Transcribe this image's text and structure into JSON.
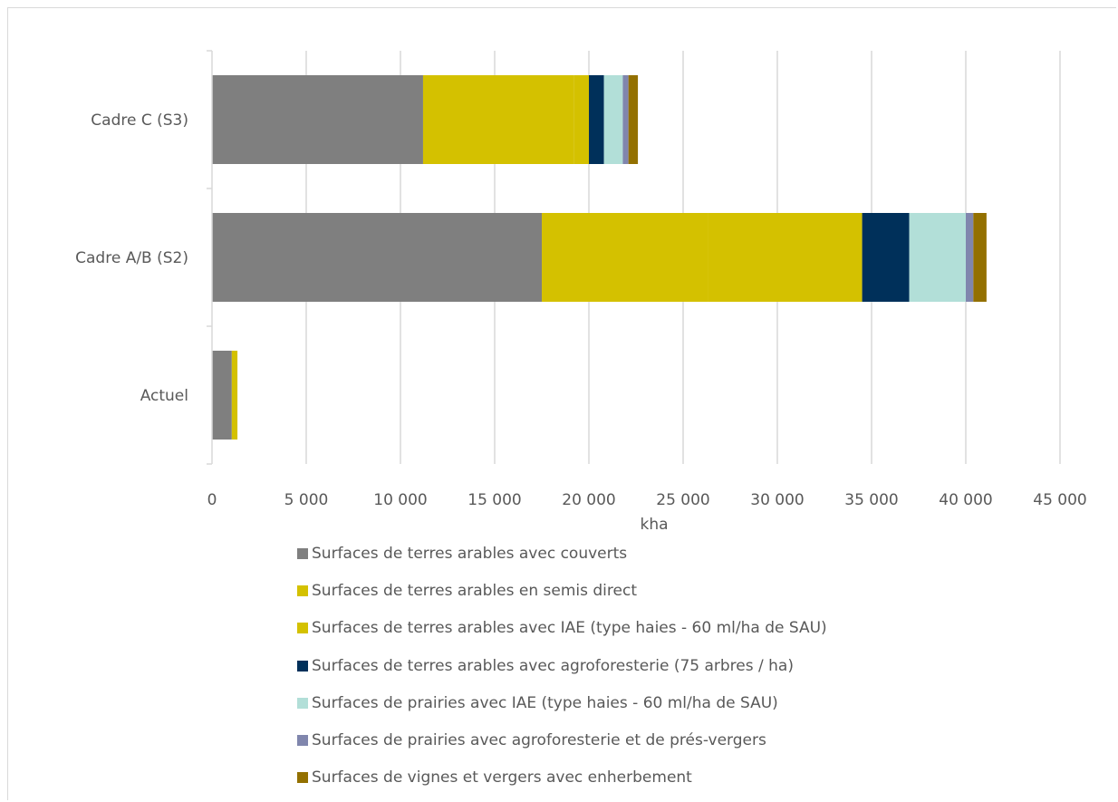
{
  "chart_data": {
    "type": "bar",
    "orientation": "horizontal",
    "stacked": true,
    "title": "",
    "xlabel": "kha",
    "ylabel": "",
    "xlim": [
      0,
      45000
    ],
    "x_ticks": [
      0,
      5000,
      10000,
      15000,
      20000,
      25000,
      30000,
      35000,
      40000,
      45000
    ],
    "x_tick_labels": [
      "0",
      "5 000",
      "10 000",
      "15 000",
      "20 000",
      "25 000",
      "30 000",
      "35 000",
      "40 000",
      "45 000"
    ],
    "grid": "vertical",
    "legend_position": "bottom",
    "categories": [
      "Cadre C (S3)",
      "Cadre A/B (S2)",
      "Actuel"
    ],
    "series": [
      {
        "name": "Surfaces de terres arables avec couverts",
        "color": "#7f7f7f",
        "values": [
          11200,
          17500,
          1050
        ]
      },
      {
        "name": "Surfaces de terres arables en semis direct",
        "color": "#d4c100",
        "values": [
          8000,
          8800,
          300
        ]
      },
      {
        "name": "Surfaces de terres arables avec IAE (type haies - 60 ml/ha de SAU)",
        "color": "#d4c100",
        "values": [
          800,
          8200,
          0
        ]
      },
      {
        "name": "Surfaces de terres arables avec agroforesterie (75 arbres / ha)",
        "color": "#00305a",
        "values": [
          800,
          2500,
          0
        ]
      },
      {
        "name": "Surfaces de prairies avec IAE (type haies - 60 ml/ha de SAU)",
        "color": "#b2dfd8",
        "values": [
          1000,
          3000,
          0
        ]
      },
      {
        "name": "Surfaces de prairies avec agroforesterie et de prés-vergers",
        "color": "#8086ad",
        "values": [
          300,
          400,
          0
        ]
      },
      {
        "name": "Surfaces de vignes et vergers avec enherbement",
        "color": "#937000",
        "values": [
          500,
          700,
          0
        ]
      }
    ]
  }
}
